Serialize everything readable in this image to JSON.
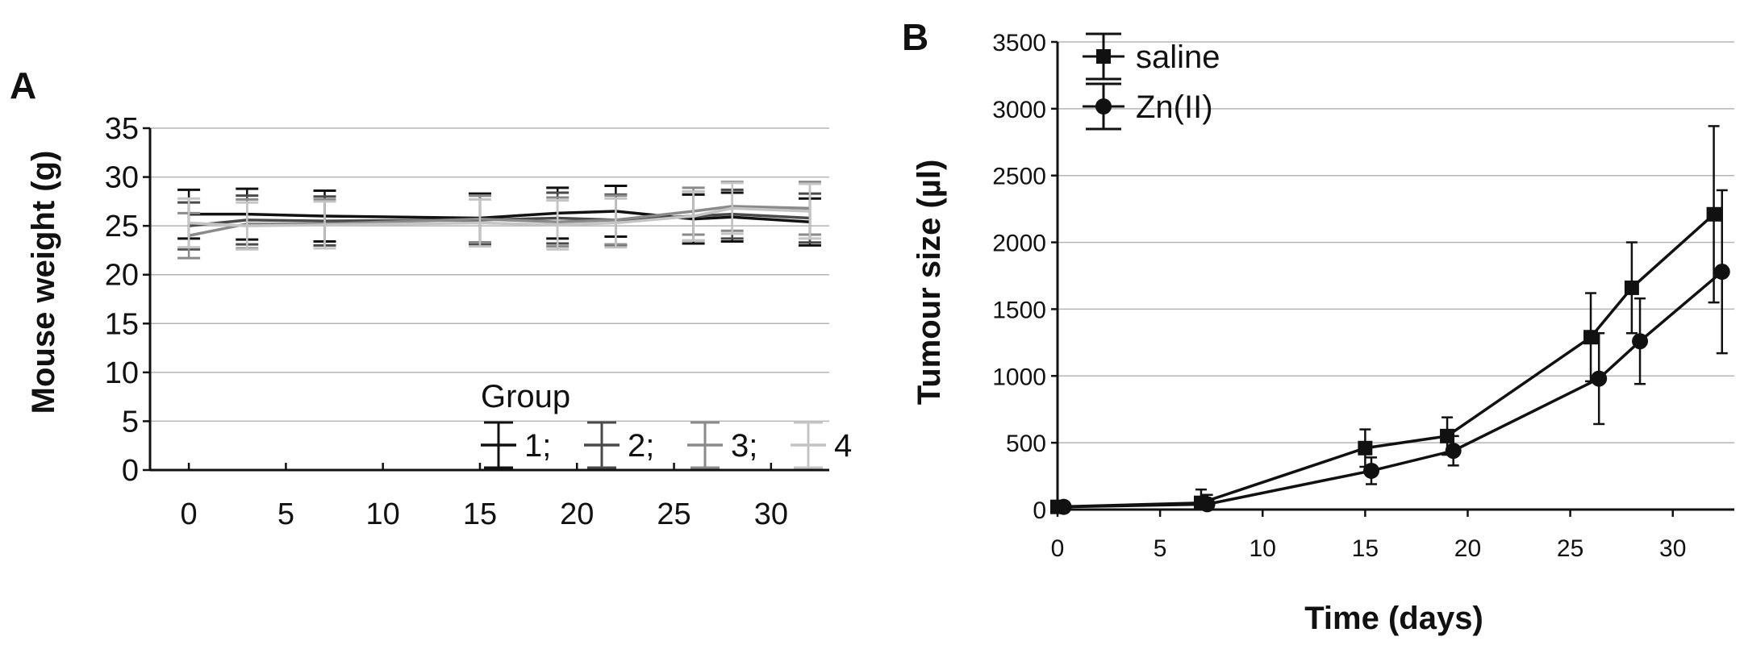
{
  "chart_data": [
    {
      "panel": "A",
      "type": "line",
      "ylabel": "Mouse weight (g)",
      "xlabel": "",
      "xlim": [
        -2,
        33
      ],
      "ylim": [
        0,
        35
      ],
      "xticks": [
        0,
        5,
        10,
        15,
        20,
        25,
        30
      ],
      "yticks": [
        0,
        5,
        10,
        15,
        20,
        25,
        30,
        35
      ],
      "grid": "horizontal",
      "legend_title": "Group",
      "legend_placement": "bottom-right",
      "series": [
        {
          "name": "1;",
          "color": "#111111",
          "x": [
            0,
            3,
            7,
            15,
            19,
            22,
            26,
            28,
            32
          ],
          "y": [
            26.2,
            26.2,
            26.0,
            25.8,
            26.3,
            26.5,
            25.7,
            25.9,
            25.4
          ],
          "err": [
            2.5,
            2.6,
            2.6,
            2.5,
            2.6,
            2.6,
            2.5,
            2.5,
            2.4
          ]
        },
        {
          "name": "2;",
          "color": "#4a4a4a",
          "x": [
            0,
            3,
            7,
            15,
            19,
            22,
            26,
            28,
            32
          ],
          "y": [
            25.0,
            25.6,
            25.5,
            25.6,
            25.8,
            25.6,
            26.0,
            26.2,
            25.8
          ],
          "err": [
            2.4,
            2.5,
            2.5,
            2.5,
            2.6,
            2.6,
            2.5,
            2.5,
            2.5
          ]
        },
        {
          "name": "3;",
          "color": "#8a8a8a",
          "x": [
            0,
            3,
            7,
            15,
            19,
            22,
            26,
            28,
            32
          ],
          "y": [
            24.0,
            25.2,
            25.2,
            25.7,
            25.4,
            25.6,
            26.5,
            27.0,
            26.8
          ],
          "err": [
            2.3,
            2.5,
            2.5,
            2.4,
            2.5,
            2.5,
            2.4,
            2.5,
            2.7
          ]
        },
        {
          "name": "4",
          "color": "#c4c4c4",
          "x": [
            0,
            3,
            7,
            15,
            19,
            22,
            26,
            28,
            32
          ],
          "y": [
            25.3,
            25.0,
            25.1,
            25.3,
            25.1,
            25.3,
            26.0,
            26.8,
            26.5
          ],
          "err": [
            2.5,
            2.4,
            2.4,
            2.4,
            2.5,
            2.5,
            2.5,
            2.6,
            2.8
          ]
        }
      ]
    },
    {
      "panel": "B",
      "type": "line",
      "ylabel": "Tumour size (µl)",
      "xlabel": "Time (days)",
      "xlim": [
        0,
        33
      ],
      "ylim": [
        0,
        3500
      ],
      "xticks": [
        0,
        5,
        10,
        15,
        20,
        25,
        30
      ],
      "yticks": [
        0,
        500,
        1000,
        1500,
        2000,
        2500,
        3000,
        3500
      ],
      "grid": "horizontal",
      "legend_placement": "top-left",
      "series": [
        {
          "name": "saline",
          "marker": "square",
          "color": "#111111",
          "x": [
            0,
            7,
            15,
            19,
            26,
            28,
            32
          ],
          "y": [
            20,
            50,
            460,
            550,
            1290,
            1660,
            2210
          ],
          "err": [
            15,
            100,
            140,
            140,
            330,
            340,
            660
          ]
        },
        {
          "name": "Zn(II)",
          "marker": "circle",
          "color": "#111111",
          "x": [
            0.3,
            7.3,
            15.3,
            19.3,
            26.4,
            28.4,
            32.4
          ],
          "y": [
            20,
            40,
            290,
            440,
            980,
            1260,
            1780
          ],
          "err": [
            15,
            70,
            100,
            110,
            340,
            320,
            610
          ]
        }
      ]
    }
  ]
}
